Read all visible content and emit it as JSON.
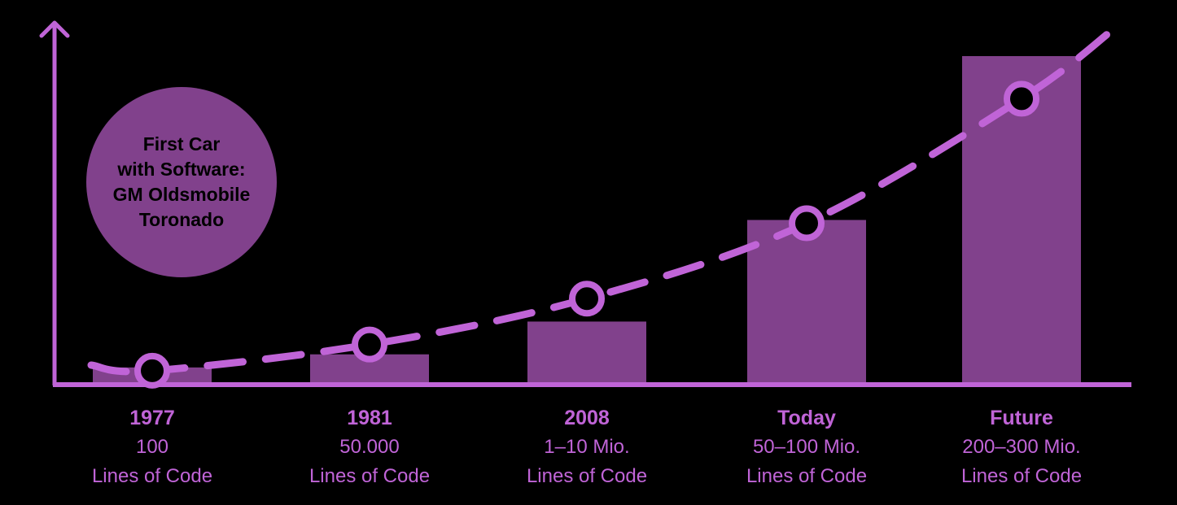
{
  "chart_data": {
    "type": "bar",
    "categories": [
      "1977",
      "1981",
      "2008",
      "Today",
      "Future"
    ],
    "value_labels": [
      "100",
      "50.000",
      "1–10 Mio.",
      "50–100 Mio.",
      "200–300 Mio."
    ],
    "unit_label": "Lines of Code",
    "relative_bar_heights": [
      0.05,
      0.09,
      0.19,
      0.5,
      1.0
    ],
    "trend_points": [
      0.04,
      0.12,
      0.26,
      0.49,
      0.87
    ],
    "trend_line": "dashed exponential curve",
    "axes": "x and y axes with arrowhead on y axis, no tick labels",
    "grid": false,
    "annotation": [
      "First Car",
      "with Software:",
      "GM Oldsmobile",
      "Toronado"
    ]
  },
  "colors": {
    "background": "#000000",
    "bar": "#81418C",
    "axis": "#C064D7",
    "trend": "#C064D7",
    "marker_fill": "#000000",
    "callout": "#81418C",
    "label_text": "#C064D7"
  }
}
